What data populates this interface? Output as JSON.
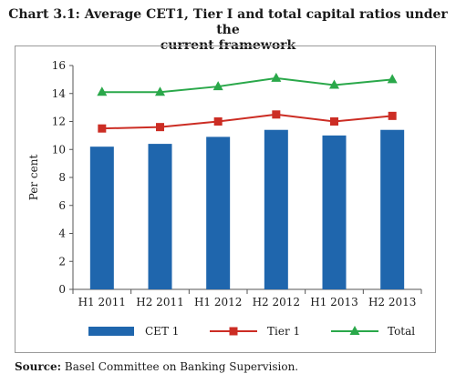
{
  "title_prefix": "Chart 3.1:",
  "title_line1": "Average CET1, Tier I and total capital ratios under the",
  "title_line2": "current framework",
  "source_label": "Source:",
  "source_text": "Basel Committee on Banking Supervision.",
  "colors": {
    "cet1": "#1f66ad",
    "tier1": "#cc2d24",
    "total": "#2aa84a"
  },
  "chart_data": {
    "type": "bar",
    "categories": [
      "H1 2011",
      "H2 2011",
      "H1 2012",
      "H2 2012",
      "H1 2013",
      "H2 2013"
    ],
    "ylabel": "Per cent",
    "xlabel": "",
    "ylim": [
      0,
      16
    ],
    "yticks": [
      0,
      2,
      4,
      6,
      8,
      10,
      12,
      14,
      16
    ],
    "grid": false,
    "legend_position": "bottom",
    "series": [
      {
        "name": "CET 1",
        "type": "bar",
        "values": [
          10.2,
          10.4,
          10.9,
          11.4,
          11.0,
          11.4
        ]
      },
      {
        "name": "Tier 1",
        "type": "line",
        "marker": "square",
        "values": [
          11.5,
          11.6,
          12.0,
          12.5,
          12.0,
          12.4
        ]
      },
      {
        "name": "Total",
        "type": "line",
        "marker": "triangle",
        "values": [
          14.1,
          14.1,
          14.5,
          15.1,
          14.6,
          15.0
        ]
      }
    ]
  }
}
